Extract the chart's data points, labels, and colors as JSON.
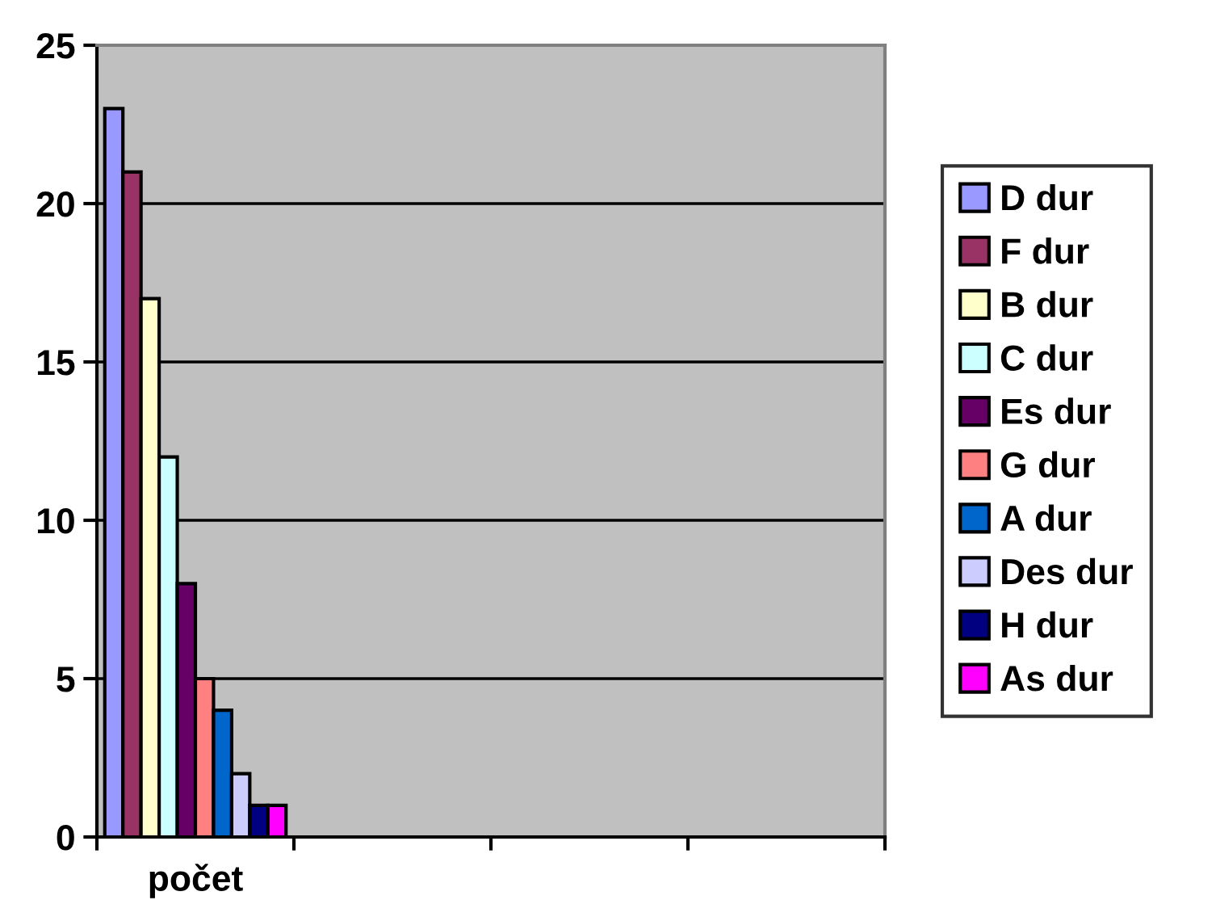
{
  "chart_data": {
    "type": "bar",
    "categories": [
      "počet",
      null,
      null,
      null
    ],
    "series": [
      {
        "name": "D dur",
        "color": "#9999ff",
        "values": [
          23,
          null,
          null,
          null
        ]
      },
      {
        "name": "F dur",
        "color": "#993366",
        "values": [
          21,
          null,
          null,
          null
        ]
      },
      {
        "name": "B dur",
        "color": "#ffffcc",
        "values": [
          17,
          null,
          null,
          null
        ]
      },
      {
        "name": "C dur",
        "color": "#ccffff",
        "values": [
          12,
          null,
          null,
          null
        ]
      },
      {
        "name": "Es dur",
        "color": "#660066",
        "values": [
          8,
          null,
          null,
          null
        ]
      },
      {
        "name": "G dur",
        "color": "#ff8080",
        "values": [
          5,
          null,
          null,
          null
        ]
      },
      {
        "name": "A dur",
        "color": "#0066cc",
        "values": [
          4,
          null,
          null,
          null
        ]
      },
      {
        "name": "Des dur",
        "color": "#ccccff",
        "values": [
          2,
          null,
          null,
          null
        ]
      },
      {
        "name": "H dur",
        "color": "#000080",
        "values": [
          1,
          null,
          null,
          null
        ]
      },
      {
        "name": "As dur",
        "color": "#ff00ff",
        "values": [
          1,
          null,
          null,
          null
        ]
      }
    ],
    "ylim": [
      0,
      25
    ],
    "yticks": [
      0,
      5,
      10,
      15,
      20,
      25
    ],
    "grid": "y",
    "legend": "right"
  }
}
